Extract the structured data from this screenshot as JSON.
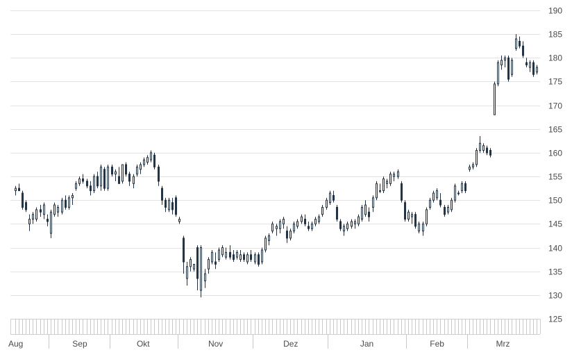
{
  "chart_data": {
    "type": "candlestick",
    "title": "",
    "xlabel": "",
    "ylabel": "",
    "ylim": [
      125,
      190
    ],
    "y_ticks": [
      125,
      130,
      135,
      140,
      145,
      150,
      155,
      160,
      165,
      170,
      175,
      180,
      185,
      190
    ],
    "y_axis_side": "right",
    "grid": true,
    "x_labels": [
      "Aug",
      "Sep",
      "Okt",
      "Nov",
      "Dez",
      "Jan",
      "Feb",
      "Mrz"
    ],
    "colors": {
      "up_fill": "#ffffff",
      "down_fill": "#243a4f",
      "outline": "#1f2f3f",
      "grid": "#e3e3e3",
      "text": "#4a4a4a"
    },
    "ohlc": [
      {
        "month": "Aug",
        "o": 152.0,
        "h": 153.0,
        "l": 151.0,
        "c": 152.5
      },
      {
        "month": "Aug",
        "o": 152.5,
        "h": 153.5,
        "l": 152.0,
        "c": 152.0
      },
      {
        "month": "Aug",
        "o": 151.5,
        "h": 152.0,
        "l": 148.0,
        "c": 148.5
      },
      {
        "month": "Aug",
        "o": 149.5,
        "h": 150.0,
        "l": 147.5,
        "c": 148.0
      },
      {
        "month": "Aug",
        "o": 145.0,
        "h": 147.0,
        "l": 143.5,
        "c": 146.0
      },
      {
        "month": "Aug",
        "o": 146.0,
        "h": 147.5,
        "l": 145.0,
        "c": 147.0
      },
      {
        "month": "Aug",
        "o": 146.0,
        "h": 148.5,
        "l": 145.5,
        "c": 148.0
      },
      {
        "month": "Aug",
        "o": 148.0,
        "h": 149.0,
        "l": 146.5,
        "c": 147.5
      },
      {
        "month": "Aug",
        "o": 147.0,
        "h": 149.5,
        "l": 146.0,
        "c": 149.0
      },
      {
        "month": "Aug",
        "o": 146.0,
        "h": 147.0,
        "l": 144.5,
        "c": 145.5
      },
      {
        "month": "Sep",
        "o": 143.0,
        "h": 148.0,
        "l": 142.0,
        "c": 147.5
      },
      {
        "month": "Sep",
        "o": 147.0,
        "h": 149.5,
        "l": 146.5,
        "c": 149.0
      },
      {
        "month": "Sep",
        "o": 147.5,
        "h": 149.0,
        "l": 146.5,
        "c": 148.5
      },
      {
        "month": "Sep",
        "o": 147.5,
        "h": 150.5,
        "l": 147.0,
        "c": 150.0
      },
      {
        "month": "Sep",
        "o": 150.0,
        "h": 151.0,
        "l": 148.0,
        "c": 148.5
      },
      {
        "month": "Sep",
        "o": 148.5,
        "h": 151.0,
        "l": 148.0,
        "c": 150.5
      },
      {
        "month": "Sep",
        "o": 150.5,
        "h": 151.5,
        "l": 149.0,
        "c": 151.0
      },
      {
        "month": "Sep",
        "o": 152.5,
        "h": 154.0,
        "l": 152.0,
        "c": 153.5
      },
      {
        "month": "Sep",
        "o": 153.5,
        "h": 155.0,
        "l": 153.0,
        "c": 154.5
      },
      {
        "month": "Sep",
        "o": 154.5,
        "h": 155.5,
        "l": 153.5,
        "c": 154.0
      },
      {
        "month": "Sep",
        "o": 154.0,
        "h": 154.5,
        "l": 152.5,
        "c": 153.0
      },
      {
        "month": "Sep",
        "o": 153.0,
        "h": 154.0,
        "l": 151.0,
        "c": 152.0
      },
      {
        "month": "Sep",
        "o": 152.0,
        "h": 155.5,
        "l": 151.5,
        "c": 155.0
      },
      {
        "month": "Sep",
        "o": 155.0,
        "h": 156.0,
        "l": 152.5,
        "c": 153.0
      },
      {
        "month": "Sep",
        "o": 153.0,
        "h": 157.5,
        "l": 152.0,
        "c": 157.0
      },
      {
        "month": "Sep",
        "o": 156.5,
        "h": 157.0,
        "l": 152.0,
        "c": 152.5
      },
      {
        "month": "Sep",
        "o": 152.5,
        "h": 157.5,
        "l": 152.0,
        "c": 157.0
      },
      {
        "month": "Okt",
        "o": 157.0,
        "h": 157.5,
        "l": 155.0,
        "c": 155.5
      },
      {
        "month": "Okt",
        "o": 155.5,
        "h": 156.5,
        "l": 154.0,
        "c": 156.0
      },
      {
        "month": "Okt",
        "o": 155.0,
        "h": 157.0,
        "l": 153.5,
        "c": 153.5
      },
      {
        "month": "Okt",
        "o": 154.0,
        "h": 157.5,
        "l": 153.5,
        "c": 157.5
      },
      {
        "month": "Okt",
        "o": 157.5,
        "h": 158.0,
        "l": 155.0,
        "c": 155.5
      },
      {
        "month": "Okt",
        "o": 155.5,
        "h": 156.0,
        "l": 153.0,
        "c": 154.0
      },
      {
        "month": "Okt",
        "o": 153.5,
        "h": 155.5,
        "l": 152.5,
        "c": 155.0
      },
      {
        "month": "Okt",
        "o": 155.5,
        "h": 157.5,
        "l": 155.0,
        "c": 157.0
      },
      {
        "month": "Okt",
        "o": 156.5,
        "h": 158.0,
        "l": 155.5,
        "c": 157.5
      },
      {
        "month": "Okt",
        "o": 157.5,
        "h": 159.0,
        "l": 157.0,
        "c": 158.5
      },
      {
        "month": "Okt",
        "o": 158.0,
        "h": 159.5,
        "l": 157.5,
        "c": 159.0
      },
      {
        "month": "Okt",
        "o": 158.5,
        "h": 160.5,
        "l": 158.0,
        "c": 160.0
      },
      {
        "month": "Okt",
        "o": 159.5,
        "h": 160.0,
        "l": 156.5,
        "c": 157.0
      },
      {
        "month": "Okt",
        "o": 157.0,
        "h": 157.5,
        "l": 153.0,
        "c": 154.0
      },
      {
        "month": "Okt",
        "o": 152.5,
        "h": 153.0,
        "l": 149.0,
        "c": 150.0
      },
      {
        "month": "Okt",
        "o": 150.0,
        "h": 150.5,
        "l": 147.5,
        "c": 148.5
      },
      {
        "month": "Okt",
        "o": 148.0,
        "h": 150.5,
        "l": 147.5,
        "c": 150.0
      },
      {
        "month": "Okt",
        "o": 149.5,
        "h": 150.5,
        "l": 147.0,
        "c": 148.0
      },
      {
        "month": "Okt",
        "o": 150.5,
        "h": 151.0,
        "l": 146.5,
        "c": 147.0
      },
      {
        "month": "Nov",
        "o": 145.5,
        "h": 146.5,
        "l": 145.0,
        "c": 146.0
      },
      {
        "month": "Nov",
        "o": 142.0,
        "h": 142.5,
        "l": 134.5,
        "c": 137.0
      },
      {
        "month": "Nov",
        "o": 133.5,
        "h": 137.0,
        "l": 132.0,
        "c": 136.0
      },
      {
        "month": "Nov",
        "o": 136.0,
        "h": 138.0,
        "l": 135.0,
        "c": 137.5
      },
      {
        "month": "Nov",
        "o": 135.5,
        "h": 136.0,
        "l": 135.0,
        "c": 136.5
      },
      {
        "month": "Nov",
        "o": 140.0,
        "h": 140.5,
        "l": 131.0,
        "c": 133.5
      },
      {
        "month": "Nov",
        "o": 131.0,
        "h": 140.5,
        "l": 129.5,
        "c": 140.0
      },
      {
        "month": "Nov",
        "o": 133.0,
        "h": 135.5,
        "l": 131.5,
        "c": 134.5
      },
      {
        "month": "Nov",
        "o": 135.5,
        "h": 138.0,
        "l": 134.5,
        "c": 137.5
      },
      {
        "month": "Nov",
        "o": 137.0,
        "h": 139.5,
        "l": 136.5,
        "c": 139.0
      },
      {
        "month": "Nov",
        "o": 137.0,
        "h": 139.0,
        "l": 135.5,
        "c": 136.5
      },
      {
        "month": "Nov",
        "o": 137.5,
        "h": 140.0,
        "l": 137.0,
        "c": 139.5
      },
      {
        "month": "Nov",
        "o": 138.5,
        "h": 140.5,
        "l": 138.0,
        "c": 140.0
      },
      {
        "month": "Nov",
        "o": 138.0,
        "h": 140.0,
        "l": 137.5,
        "c": 139.0
      },
      {
        "month": "Nov",
        "o": 139.0,
        "h": 140.5,
        "l": 137.5,
        "c": 138.0
      },
      {
        "month": "Nov",
        "o": 138.5,
        "h": 139.5,
        "l": 137.0,
        "c": 137.5
      },
      {
        "month": "Nov",
        "o": 138.0,
        "h": 139.5,
        "l": 137.5,
        "c": 139.0
      },
      {
        "month": "Nov",
        "o": 137.5,
        "h": 139.5,
        "l": 137.0,
        "c": 138.5
      },
      {
        "month": "Nov",
        "o": 138.5,
        "h": 139.0,
        "l": 137.0,
        "c": 137.5
      },
      {
        "month": "Nov",
        "o": 137.0,
        "h": 139.0,
        "l": 136.5,
        "c": 138.5
      },
      {
        "month": "Nov",
        "o": 138.5,
        "h": 139.5,
        "l": 137.0,
        "c": 137.5
      },
      {
        "month": "Dez",
        "o": 137.0,
        "h": 139.0,
        "l": 136.5,
        "c": 138.5
      },
      {
        "month": "Dez",
        "o": 138.5,
        "h": 139.0,
        "l": 136.0,
        "c": 136.5
      },
      {
        "month": "Dez",
        "o": 137.0,
        "h": 140.0,
        "l": 136.5,
        "c": 139.5
      },
      {
        "month": "Dez",
        "o": 139.5,
        "h": 142.5,
        "l": 139.0,
        "c": 142.0
      },
      {
        "month": "Dez",
        "o": 141.5,
        "h": 143.0,
        "l": 140.5,
        "c": 142.5
      },
      {
        "month": "Dez",
        "o": 143.5,
        "h": 145.5,
        "l": 143.0,
        "c": 145.0
      },
      {
        "month": "Dez",
        "o": 144.0,
        "h": 145.0,
        "l": 142.5,
        "c": 144.5
      },
      {
        "month": "Dez",
        "o": 144.0,
        "h": 146.0,
        "l": 143.0,
        "c": 145.5
      },
      {
        "month": "Dez",
        "o": 145.0,
        "h": 146.5,
        "l": 144.0,
        "c": 146.0
      },
      {
        "month": "Dez",
        "o": 143.5,
        "h": 144.5,
        "l": 141.0,
        "c": 142.0
      },
      {
        "month": "Dez",
        "o": 142.0,
        "h": 144.0,
        "l": 141.5,
        "c": 143.5
      },
      {
        "month": "Dez",
        "o": 143.5,
        "h": 145.5,
        "l": 143.0,
        "c": 145.0
      },
      {
        "month": "Dez",
        "o": 144.5,
        "h": 146.0,
        "l": 144.0,
        "c": 145.5
      },
      {
        "month": "Dez",
        "o": 145.5,
        "h": 147.0,
        "l": 145.0,
        "c": 146.5
      },
      {
        "month": "Dez",
        "o": 146.0,
        "h": 147.0,
        "l": 144.5,
        "c": 145.0
      },
      {
        "month": "Dez",
        "o": 144.5,
        "h": 145.5,
        "l": 143.5,
        "c": 144.0
      },
      {
        "month": "Dez",
        "o": 144.0,
        "h": 145.5,
        "l": 143.5,
        "c": 145.0
      },
      {
        "month": "Dez",
        "o": 145.0,
        "h": 146.5,
        "l": 144.5,
        "c": 146.0
      },
      {
        "month": "Dez",
        "o": 145.5,
        "h": 147.0,
        "l": 145.0,
        "c": 146.5
      },
      {
        "month": "Dez",
        "o": 147.0,
        "h": 149.0,
        "l": 146.5,
        "c": 148.5
      },
      {
        "month": "Dez",
        "o": 148.5,
        "h": 150.5,
        "l": 148.0,
        "c": 150.0
      },
      {
        "month": "Jan",
        "o": 149.5,
        "h": 152.0,
        "l": 149.0,
        "c": 151.5
      },
      {
        "month": "Jan",
        "o": 151.0,
        "h": 152.0,
        "l": 149.5,
        "c": 150.0
      },
      {
        "month": "Jan",
        "o": 148.5,
        "h": 149.0,
        "l": 145.5,
        "c": 146.0
      },
      {
        "month": "Jan",
        "o": 145.5,
        "h": 146.0,
        "l": 143.5,
        "c": 144.0
      },
      {
        "month": "Jan",
        "o": 143.5,
        "h": 145.0,
        "l": 142.5,
        "c": 144.5
      },
      {
        "month": "Jan",
        "o": 144.0,
        "h": 145.5,
        "l": 143.5,
        "c": 145.0
      },
      {
        "month": "Jan",
        "o": 144.5,
        "h": 146.0,
        "l": 144.0,
        "c": 145.5
      },
      {
        "month": "Jan",
        "o": 145.0,
        "h": 146.0,
        "l": 144.0,
        "c": 145.5
      },
      {
        "month": "Jan",
        "o": 145.0,
        "h": 147.0,
        "l": 144.5,
        "c": 146.5
      },
      {
        "month": "Jan",
        "o": 146.0,
        "h": 149.0,
        "l": 145.5,
        "c": 148.5
      },
      {
        "month": "Jan",
        "o": 147.0,
        "h": 150.0,
        "l": 146.5,
        "c": 149.0
      },
      {
        "month": "Jan",
        "o": 147.5,
        "h": 148.5,
        "l": 145.5,
        "c": 146.5
      },
      {
        "month": "Jan",
        "o": 148.5,
        "h": 151.0,
        "l": 147.5,
        "c": 150.5
      },
      {
        "month": "Jan",
        "o": 150.5,
        "h": 154.0,
        "l": 150.0,
        "c": 153.5
      },
      {
        "month": "Jan",
        "o": 152.0,
        "h": 153.5,
        "l": 151.5,
        "c": 152.0
      },
      {
        "month": "Jan",
        "o": 152.0,
        "h": 155.0,
        "l": 151.5,
        "c": 154.5
      },
      {
        "month": "Jan",
        "o": 153.5,
        "h": 154.5,
        "l": 152.5,
        "c": 154.0
      },
      {
        "month": "Jan",
        "o": 153.5,
        "h": 156.0,
        "l": 153.0,
        "c": 155.5
      },
      {
        "month": "Jan",
        "o": 155.0,
        "h": 156.0,
        "l": 154.0,
        "c": 155.5
      },
      {
        "month": "Jan",
        "o": 155.0,
        "h": 156.5,
        "l": 154.5,
        "c": 156.0
      },
      {
        "month": "Jan",
        "o": 153.5,
        "h": 154.0,
        "l": 149.5,
        "c": 150.0
      },
      {
        "month": "Jan",
        "o": 149.5,
        "h": 150.0,
        "l": 145.5,
        "c": 146.0
      },
      {
        "month": "Feb",
        "o": 146.0,
        "h": 148.0,
        "l": 145.5,
        "c": 147.5
      },
      {
        "month": "Feb",
        "o": 146.5,
        "h": 147.5,
        "l": 145.0,
        "c": 147.0
      },
      {
        "month": "Feb",
        "o": 147.0,
        "h": 147.5,
        "l": 144.0,
        "c": 144.5
      },
      {
        "month": "Feb",
        "o": 143.5,
        "h": 145.5,
        "l": 143.0,
        "c": 145.0
      },
      {
        "month": "Feb",
        "o": 143.5,
        "h": 145.5,
        "l": 142.5,
        "c": 145.0
      },
      {
        "month": "Feb",
        "o": 145.0,
        "h": 148.5,
        "l": 144.5,
        "c": 148.0
      },
      {
        "month": "Feb",
        "o": 148.5,
        "h": 150.5,
        "l": 148.0,
        "c": 150.0
      },
      {
        "month": "Feb",
        "o": 150.0,
        "h": 152.0,
        "l": 149.5,
        "c": 151.5
      },
      {
        "month": "Feb",
        "o": 150.5,
        "h": 152.5,
        "l": 150.0,
        "c": 152.0
      },
      {
        "month": "Feb",
        "o": 150.0,
        "h": 151.5,
        "l": 148.5,
        "c": 149.0
      },
      {
        "month": "Feb",
        "o": 148.5,
        "h": 149.0,
        "l": 146.5,
        "c": 147.0
      },
      {
        "month": "Feb",
        "o": 147.5,
        "h": 149.0,
        "l": 147.0,
        "c": 148.5
      },
      {
        "month": "Feb",
        "o": 148.0,
        "h": 150.5,
        "l": 147.5,
        "c": 150.0
      },
      {
        "month": "Feb",
        "o": 150.0,
        "h": 153.5,
        "l": 149.5,
        "c": 153.0
      },
      {
        "month": "Feb",
        "o": 151.5,
        "h": 152.0,
        "l": 151.0,
        "c": 151.5
      },
      {
        "month": "Feb",
        "o": 152.0,
        "h": 154.0,
        "l": 151.5,
        "c": 153.5
      },
      {
        "month": "Feb",
        "o": 153.5,
        "h": 154.0,
        "l": 151.5,
        "c": 152.0
      },
      {
        "month": "Mrz",
        "o": 156.5,
        "h": 157.5,
        "l": 156.0,
        "c": 157.0
      },
      {
        "month": "Mrz",
        "o": 157.0,
        "h": 158.0,
        "l": 156.5,
        "c": 157.5
      },
      {
        "month": "Mrz",
        "o": 157.5,
        "h": 161.0,
        "l": 157.0,
        "c": 160.5
      },
      {
        "month": "Mrz",
        "o": 160.5,
        "h": 163.5,
        "l": 160.0,
        "c": 162.0
      },
      {
        "month": "Mrz",
        "o": 160.5,
        "h": 162.0,
        "l": 160.0,
        "c": 161.5
      },
      {
        "month": "Mrz",
        "o": 161.0,
        "h": 161.5,
        "l": 159.5,
        "c": 160.0
      },
      {
        "month": "Mrz",
        "o": 160.5,
        "h": 161.0,
        "l": 159.0,
        "c": 159.5
      },
      {
        "month": "Mrz",
        "o": 168.0,
        "h": 175.0,
        "l": 168.0,
        "c": 174.5
      },
      {
        "month": "Mrz",
        "o": 174.5,
        "h": 179.5,
        "l": 174.0,
        "c": 179.0
      },
      {
        "month": "Mrz",
        "o": 178.5,
        "h": 180.5,
        "l": 177.5,
        "c": 179.5
      },
      {
        "month": "Mrz",
        "o": 179.5,
        "h": 180.5,
        "l": 178.0,
        "c": 180.0
      },
      {
        "month": "Mrz",
        "o": 180.0,
        "h": 180.5,
        "l": 175.0,
        "c": 175.5
      },
      {
        "month": "Mrz",
        "o": 176.5,
        "h": 180.0,
        "l": 176.0,
        "c": 179.5
      },
      {
        "month": "Mrz",
        "o": 182.0,
        "h": 185.0,
        "l": 181.5,
        "c": 184.0
      },
      {
        "month": "Mrz",
        "o": 183.5,
        "h": 184.5,
        "l": 182.0,
        "c": 182.5
      },
      {
        "month": "Mrz",
        "o": 182.5,
        "h": 183.5,
        "l": 180.0,
        "c": 180.5
      },
      {
        "month": "Mrz",
        "o": 179.0,
        "h": 180.0,
        "l": 178.0,
        "c": 178.5
      },
      {
        "month": "Mrz",
        "o": 178.0,
        "h": 179.5,
        "l": 177.0,
        "c": 179.0
      },
      {
        "month": "Mrz",
        "o": 179.0,
        "h": 179.5,
        "l": 176.0,
        "c": 176.5
      },
      {
        "month": "Mrz",
        "o": 177.0,
        "h": 178.5,
        "l": 176.5,
        "c": 178.0
      }
    ]
  }
}
